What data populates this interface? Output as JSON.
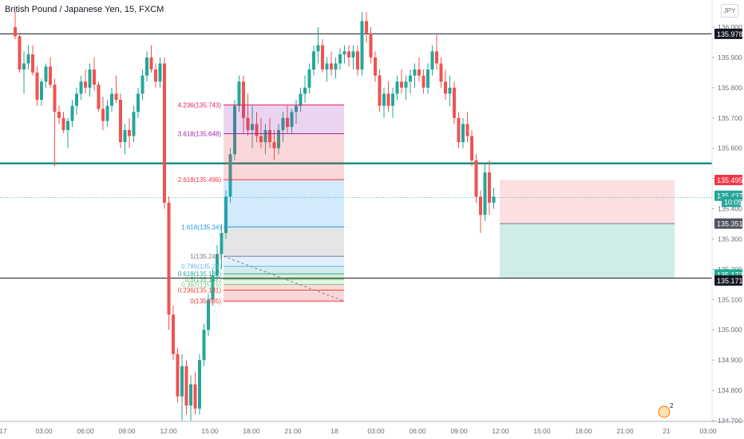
{
  "header": {
    "symbol_title": "British Pound / Japanese Yen, 15, FXCM",
    "currency_badge": "JPY"
  },
  "colors": {
    "up": "#26a69a",
    "down": "#ef5350",
    "teal_line": "#138a7e",
    "black_line": "#131722",
    "current_price_label": "#26a69a",
    "red_label": "#f23645",
    "green_label": "#22ab94",
    "dark_label": "#131722"
  },
  "chart_data": {
    "type": "candlestick",
    "title": "British Pound / Japanese Yen, 15, FXCM",
    "ylim": [
      134.7,
      136.05
    ],
    "y_ticks": [
      "136.000",
      "135.900",
      "135.800",
      "135.700",
      "135.600",
      "135.500",
      "135.400",
      "135.300",
      "135.200",
      "135.100",
      "135.000",
      "134.900",
      "134.800",
      "134.700"
    ],
    "x_ticks": [
      "17",
      "03:00",
      "06:00",
      "09:00",
      "12:00",
      "15:00",
      "18:00",
      "21:00",
      "18",
      "03:00",
      "06:00",
      "09:00",
      "12:00",
      "15:00",
      "18:00",
      "21:00",
      "21",
      "03:00"
    ],
    "horizontal_lines": [
      {
        "price": 135.978,
        "color": "#131722",
        "label": "135.978"
      },
      {
        "price": 135.55,
        "color": "#138a7e"
      },
      {
        "price": 135.171,
        "color": "#131722",
        "label": "135.171"
      }
    ],
    "price_labels": [
      {
        "text": "135.978",
        "price": 135.978,
        "style": "dark"
      },
      {
        "text": "135.495",
        "price": 135.495,
        "style": "red"
      },
      {
        "text": "135.437",
        "price": 135.443,
        "style": "teal"
      },
      {
        "text": "10:05",
        "price": 135.423,
        "style": "teal"
      },
      {
        "text": "135.351",
        "price": 135.351,
        "style": "grey"
      },
      {
        "text": "135.172",
        "price": 135.183,
        "style": "green"
      },
      {
        "text": "135.171",
        "price": 135.163,
        "style": "dark"
      }
    ],
    "fib_levels": [
      {
        "label": "4.236(135.743)",
        "price": 135.743,
        "color": "#e91e63"
      },
      {
        "label": "3.618(135.648)",
        "price": 135.648,
        "color": "#9c27b0"
      },
      {
        "label": "2.618(135.496)",
        "price": 135.496,
        "color": "#f23645"
      },
      {
        "label": "1.618(135.34)",
        "price": 135.34,
        "color": "#2196f3"
      },
      {
        "label": "1(135.243)",
        "price": 135.243,
        "color": "#787b86"
      },
      {
        "label": "0.786(135.21)",
        "price": 135.21,
        "color": "#64b5f6"
      },
      {
        "label": "0.618(135.185)",
        "price": 135.185,
        "color": "#26a69a"
      },
      {
        "label": "0.5(135.167)",
        "price": 135.167,
        "color": "#4caf50"
      },
      {
        "label": "0.382(135.15)",
        "price": 135.15,
        "color": "#81c784"
      },
      {
        "label": "0.236(135.131)",
        "price": 135.131,
        "color": "#f44336"
      },
      {
        "label": "0(135.095)",
        "price": 135.095,
        "color": "#f23645"
      }
    ],
    "risk_box": {
      "entry": 135.351,
      "stop": 135.495,
      "target": 135.172
    },
    "candles": [
      [
        136.0,
        136.05,
        135.96,
        135.97
      ],
      [
        135.97,
        135.98,
        135.85,
        135.86
      ],
      [
        135.86,
        135.92,
        135.78,
        135.88
      ],
      [
        135.88,
        135.94,
        135.86,
        135.91
      ],
      [
        135.91,
        135.94,
        135.84,
        135.85
      ],
      [
        135.85,
        135.87,
        135.74,
        135.76
      ],
      [
        135.76,
        135.83,
        135.74,
        135.82
      ],
      [
        135.82,
        135.88,
        135.8,
        135.87
      ],
      [
        135.87,
        135.9,
        135.8,
        135.81
      ],
      [
        135.81,
        135.83,
        135.54,
        135.72
      ],
      [
        135.72,
        135.74,
        135.68,
        135.7
      ],
      [
        135.7,
        135.72,
        135.65,
        135.66
      ],
      [
        135.66,
        135.7,
        135.6,
        135.69
      ],
      [
        135.69,
        135.76,
        135.67,
        135.74
      ],
      [
        135.74,
        135.8,
        135.71,
        135.78
      ],
      [
        135.78,
        135.84,
        135.76,
        135.82
      ],
      [
        135.82,
        135.86,
        135.78,
        135.8
      ],
      [
        135.8,
        135.88,
        135.77,
        135.86
      ],
      [
        135.86,
        135.9,
        135.79,
        135.81
      ],
      [
        135.81,
        135.82,
        135.72,
        135.73
      ],
      [
        135.73,
        135.77,
        135.66,
        135.69
      ],
      [
        135.69,
        135.76,
        135.67,
        135.74
      ],
      [
        135.74,
        135.8,
        135.72,
        135.78
      ],
      [
        135.78,
        135.84,
        135.75,
        135.76
      ],
      [
        135.76,
        135.78,
        135.6,
        135.62
      ],
      [
        135.62,
        135.68,
        135.58,
        135.66
      ],
      [
        135.66,
        135.7,
        135.6,
        135.64
      ],
      [
        135.64,
        135.74,
        135.62,
        135.72
      ],
      [
        135.72,
        135.8,
        135.7,
        135.78
      ],
      [
        135.78,
        135.86,
        135.76,
        135.84
      ],
      [
        135.84,
        135.92,
        135.82,
        135.9
      ],
      [
        135.9,
        135.94,
        135.85,
        135.86
      ],
      [
        135.86,
        135.88,
        135.8,
        135.82
      ],
      [
        135.82,
        135.9,
        135.8,
        135.88
      ],
      [
        135.88,
        135.9,
        135.4,
        135.42
      ],
      [
        135.42,
        135.44,
        135.0,
        135.05
      ],
      [
        135.05,
        135.08,
        134.9,
        134.92
      ],
      [
        134.92,
        134.94,
        134.76,
        134.78
      ],
      [
        134.78,
        134.92,
        134.7,
        134.88
      ],
      [
        134.88,
        134.9,
        134.72,
        134.75
      ],
      [
        134.75,
        134.85,
        134.7,
        134.82
      ],
      [
        134.82,
        134.86,
        134.72,
        134.74
      ],
      [
        134.74,
        134.92,
        134.72,
        134.9
      ],
      [
        134.9,
        135.02,
        134.88,
        135.0
      ],
      [
        135.0,
        135.12,
        134.98,
        135.1
      ],
      [
        135.1,
        135.2,
        135.08,
        135.18
      ],
      [
        135.18,
        135.28,
        135.16,
        135.25
      ],
      [
        135.25,
        135.35,
        135.2,
        135.32
      ],
      [
        135.32,
        135.46,
        135.3,
        135.44
      ],
      [
        135.44,
        135.6,
        135.42,
        135.58
      ],
      [
        135.58,
        135.76,
        135.56,
        135.74
      ],
      [
        135.74,
        135.84,
        135.72,
        135.82
      ],
      [
        135.82,
        135.84,
        135.65,
        135.7
      ],
      [
        135.7,
        135.78,
        135.64,
        135.66
      ],
      [
        135.66,
        135.74,
        135.6,
        135.68
      ],
      [
        135.68,
        135.72,
        135.62,
        135.64
      ],
      [
        135.64,
        135.7,
        135.6,
        135.62
      ],
      [
        135.62,
        135.68,
        135.58,
        135.66
      ],
      [
        135.66,
        135.7,
        135.6,
        135.62
      ],
      [
        135.62,
        135.66,
        135.56,
        135.6
      ],
      [
        135.6,
        135.68,
        135.58,
        135.66
      ],
      [
        135.66,
        135.72,
        135.62,
        135.7
      ],
      [
        135.7,
        135.74,
        135.65,
        135.67
      ],
      [
        135.67,
        135.73,
        135.65,
        135.72
      ],
      [
        135.72,
        135.76,
        135.68,
        135.74
      ],
      [
        135.74,
        135.8,
        135.72,
        135.78
      ],
      [
        135.78,
        135.84,
        135.75,
        135.8
      ],
      [
        135.8,
        135.88,
        135.78,
        135.86
      ],
      [
        135.86,
        135.94,
        135.84,
        135.92
      ],
      [
        135.92,
        136.0,
        135.88,
        135.94
      ],
      [
        135.94,
        135.96,
        135.85,
        135.86
      ],
      [
        135.86,
        135.9,
        135.82,
        135.88
      ],
      [
        135.88,
        135.92,
        135.84,
        135.86
      ],
      [
        135.86,
        135.9,
        135.83,
        135.88
      ],
      [
        135.88,
        135.93,
        135.86,
        135.91
      ],
      [
        135.91,
        135.94,
        135.88,
        135.92
      ],
      [
        135.92,
        135.94,
        135.87,
        135.9
      ],
      [
        135.9,
        135.94,
        135.86,
        135.92
      ],
      [
        135.92,
        135.94,
        135.84,
        135.86
      ],
      [
        135.86,
        136.05,
        135.84,
        136.02
      ],
      [
        136.02,
        136.05,
        135.95,
        135.98
      ],
      [
        135.98,
        136.0,
        135.88,
        135.9
      ],
      [
        135.9,
        135.92,
        135.82,
        135.84
      ],
      [
        135.84,
        135.86,
        135.72,
        135.74
      ],
      [
        135.74,
        135.8,
        135.7,
        135.78
      ],
      [
        135.78,
        135.82,
        135.72,
        135.74
      ],
      [
        135.74,
        135.8,
        135.7,
        135.78
      ],
      [
        135.78,
        135.84,
        135.76,
        135.82
      ],
      [
        135.82,
        135.86,
        135.78,
        135.8
      ],
      [
        135.8,
        135.84,
        135.76,
        135.82
      ],
      [
        135.82,
        135.86,
        135.78,
        135.84
      ],
      [
        135.84,
        135.88,
        135.8,
        135.86
      ],
      [
        135.86,
        135.9,
        135.82,
        135.84
      ],
      [
        135.84,
        135.86,
        135.78,
        135.8
      ],
      [
        135.8,
        135.88,
        135.78,
        135.86
      ],
      [
        135.86,
        135.94,
        135.84,
        135.92
      ],
      [
        135.92,
        135.98,
        135.86,
        135.88
      ],
      [
        135.88,
        135.9,
        135.8,
        135.82
      ],
      [
        135.82,
        135.86,
        135.76,
        135.78
      ],
      [
        135.78,
        135.84,
        135.74,
        135.8
      ],
      [
        135.8,
        135.82,
        135.68,
        135.7
      ],
      [
        135.7,
        135.72,
        135.6,
        135.62
      ],
      [
        135.62,
        135.7,
        135.6,
        135.68
      ],
      [
        135.68,
        135.72,
        135.62,
        135.64
      ],
      [
        135.64,
        135.66,
        135.54,
        135.56
      ],
      [
        135.56,
        135.58,
        135.42,
        135.44
      ],
      [
        135.44,
        135.46,
        135.32,
        135.38
      ],
      [
        135.38,
        135.55,
        135.36,
        135.52
      ],
      [
        135.52,
        135.56,
        135.38,
        135.42
      ],
      [
        135.42,
        135.47,
        135.4,
        135.44
      ]
    ]
  }
}
